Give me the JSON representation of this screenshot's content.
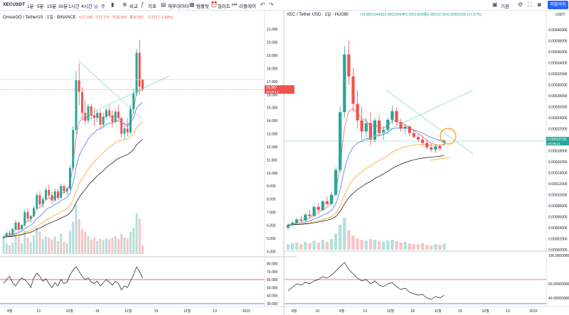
{
  "toolbar": {
    "symbol": "XECUSDT",
    "intervals": [
      "1분",
      "5분",
      "15분",
      "30분",
      "1시간",
      "4시간",
      "날",
      "주"
    ],
    "compare": "비교",
    "indicators": "지표",
    "financials": "재무데이터",
    "templates": "템플릿",
    "alert": "얼러트",
    "replay": "리플레이",
    "layout": "기본",
    "publish": "퍼블리쉬"
  },
  "chart_data": [
    {
      "type": "candlestick",
      "title": "OmiseGO / TetherUS · 1일 · BINANCE",
      "ohlc_legend": {
        "open": "시17.159",
        "high": "고17.170",
        "low": "저16.309",
        "close": "종16.387",
        "change": "−0.272 (−1.59%)"
      },
      "last_price_label": "16.387",
      "countdown_label": "23:09:13",
      "price_axis": [
        "21.000",
        "20.000",
        "19.000",
        "18.000",
        "17.000",
        "16.000",
        "15.000",
        "14.000",
        "13.000",
        "12.000",
        "11.000",
        "10.000",
        "9.000",
        "8.000",
        "7.000",
        "6.000",
        "5.000",
        "4.000"
      ],
      "x_ticks": [
        "9월",
        "13",
        "10월",
        "18",
        "11월",
        "15",
        "12월",
        "13",
        "2022"
      ],
      "osc_axis": [
        "80.000",
        "70.000",
        "60.000",
        "50.000",
        "40.000",
        "30.000"
      ],
      "candles": [
        [
          5.0,
          5.3,
          4.8,
          5.1
        ],
        [
          5.1,
          5.5,
          5.0,
          5.4
        ],
        [
          5.4,
          5.6,
          5.2,
          5.3
        ],
        [
          5.3,
          5.8,
          5.2,
          5.7
        ],
        [
          5.7,
          6.4,
          5.6,
          6.2
        ],
        [
          6.2,
          6.3,
          5.5,
          5.7
        ],
        [
          5.7,
          6.1,
          5.6,
          6.0
        ],
        [
          6.0,
          7.2,
          5.9,
          7.0
        ],
        [
          7.0,
          7.3,
          6.3,
          6.5
        ],
        [
          6.5,
          6.8,
          6.2,
          6.7
        ],
        [
          6.7,
          7.5,
          6.6,
          7.3
        ],
        [
          7.3,
          8.5,
          7.2,
          8.3
        ],
        [
          8.3,
          8.6,
          7.4,
          7.6
        ],
        [
          7.6,
          8.2,
          7.3,
          8.0
        ],
        [
          8.0,
          8.9,
          7.9,
          8.7
        ],
        [
          8.7,
          9.1,
          8.1,
          8.3
        ],
        [
          8.3,
          8.6,
          7.6,
          7.9
        ],
        [
          7.9,
          8.8,
          7.8,
          8.6
        ],
        [
          8.6,
          8.8,
          7.9,
          8.1
        ],
        [
          8.1,
          9.2,
          8.0,
          9.0
        ],
        [
          9.0,
          9.1,
          8.4,
          8.6
        ],
        [
          8.6,
          8.9,
          8.3,
          8.8
        ],
        [
          8.8,
          10.6,
          8.7,
          10.4
        ],
        [
          10.4,
          13.6,
          10.2,
          13.3
        ],
        [
          13.3,
          17.8,
          13.0,
          17.1
        ],
        [
          17.1,
          18.4,
          15.2,
          16.2
        ],
        [
          16.2,
          16.6,
          14.1,
          14.6
        ],
        [
          14.6,
          15.6,
          13.7,
          14.0
        ],
        [
          14.0,
          15.3,
          13.8,
          15.1
        ],
        [
          15.1,
          15.3,
          14.1,
          14.4
        ],
        [
          14.4,
          15.0,
          13.6,
          14.2
        ],
        [
          14.2,
          14.8,
          13.9,
          14.6
        ],
        [
          14.6,
          14.8,
          13.4,
          13.7
        ],
        [
          13.7,
          14.6,
          13.5,
          14.3
        ],
        [
          14.3,
          15.0,
          14.1,
          14.8
        ],
        [
          14.8,
          15.2,
          14.2,
          14.4
        ],
        [
          14.4,
          14.8,
          13.5,
          13.9
        ],
        [
          13.9,
          14.9,
          13.8,
          14.7
        ],
        [
          14.7,
          15.2,
          14.0,
          14.2
        ],
        [
          14.2,
          14.3,
          12.7,
          13.0
        ],
        [
          13.0,
          13.6,
          12.6,
          13.4
        ],
        [
          13.4,
          14.2,
          12.8,
          13.1
        ],
        [
          13.1,
          15.2,
          13.0,
          14.9
        ],
        [
          14.9,
          16.4,
          14.6,
          16.1
        ],
        [
          16.1,
          19.5,
          15.9,
          19.2
        ],
        [
          19.2,
          20.2,
          16.0,
          16.6
        ],
        [
          17.159,
          17.17,
          16.309,
          16.387
        ]
      ],
      "volume": [
        22,
        18,
        15,
        20,
        35,
        30,
        18,
        40,
        28,
        20,
        32,
        45,
        38,
        26,
        30,
        28,
        25,
        30,
        22,
        35,
        20,
        18,
        40,
        55,
        85,
        60,
        42,
        38,
        30,
        25,
        28,
        22,
        26,
        24,
        27,
        25,
        28,
        30,
        26,
        34,
        28,
        26,
        38,
        45,
        70,
        60,
        15
      ],
      "osc_values": [
        55,
        60,
        64,
        56,
        52,
        58,
        62,
        60,
        56,
        50,
        62,
        68,
        64,
        58,
        61,
        55,
        50,
        56,
        52,
        60,
        55,
        57,
        66,
        72,
        76,
        70,
        64,
        60,
        62,
        57,
        55,
        58,
        52,
        56,
        60,
        57,
        53,
        58,
        55,
        47,
        52,
        50,
        58,
        66,
        76,
        70,
        62
      ],
      "osc_line_level": 60
    },
    {
      "type": "candlestick",
      "title": "XEC / Tether USD · 1일 · HUOBI",
      "ohlc_legend": {
        "open": "시0.00019443",
        "high": "고0.00020064",
        "low": "저0.00019006",
        "close": "종0.00019736",
        "change": "+0.00000305 (+1.57%)"
      },
      "last_price_label": "0.00019736",
      "countdown_label": "23:09:12",
      "price_axis": [
        "0.00040000",
        "0.00038000",
        "0.00036000",
        "0.00034000",
        "0.00032000",
        "0.00030000",
        "0.00028000",
        "0.00026000",
        "0.00024000",
        "0.00022000",
        "0.00020000",
        "0.00018000",
        "0.00016000",
        "0.00014000",
        "0.00012000",
        "0.00010000",
        "0.00008000",
        "0.00006000",
        "0.00004000",
        "0.00002000",
        "0.00000000"
      ],
      "axis_currency": "USDT",
      "x_ticks": [
        "8월",
        "16",
        "9월",
        "13",
        "10월",
        "18",
        "11월",
        "15",
        "12월",
        "13",
        "2022"
      ],
      "osc_axis": [
        "100.00000000",
        "60.00000000",
        "40.00000000"
      ],
      "candles": [
        [
          4e-05,
          4.8e-05,
          3.6e-05,
          4.5e-05
        ],
        [
          4.5e-05,
          5.2e-05,
          4.2e-05,
          4.9e-05
        ],
        [
          4.9e-05,
          5.8e-05,
          4.6e-05,
          5.5e-05
        ],
        [
          5.5e-05,
          6.2e-05,
          5e-05,
          5.3e-05
        ],
        [
          5.3e-05,
          6.6e-05,
          5.2e-05,
          6.4e-05
        ],
        [
          6.4e-05,
          7.2e-05,
          5.8e-05,
          6.1e-05
        ],
        [
          6.1e-05,
          8e-05,
          6e-05,
          7.8e-05
        ],
        [
          7.8e-05,
          8.5e-05,
          6.8e-05,
          7.2e-05
        ],
        [
          7.2e-05,
          9e-05,
          7e-05,
          8.8e-05
        ],
        [
          8.8e-05,
          9.6e-05,
          8e-05,
          8.3e-05
        ],
        [
          8.3e-05,
          0.000105,
          8.2e-05,
          0.0001
        ],
        [
          0.0001,
          0.00015,
          9.8e-05,
          0.000145
        ],
        [
          0.000145,
          0.00026,
          0.00014,
          0.00025
        ],
        [
          0.00025,
          0.00037,
          0.00024,
          0.000355
        ],
        [
          0.000355,
          0.00038,
          0.0003,
          0.000315
        ],
        [
          0.000315,
          0.00033,
          0.00025,
          0.000265
        ],
        [
          0.000265,
          0.00029,
          0.00022,
          0.000235
        ],
        [
          0.000235,
          0.00026,
          0.0002,
          0.000215
        ],
        [
          0.000215,
          0.00024,
          0.000205,
          0.00023
        ],
        [
          0.00023,
          0.00025,
          0.00019,
          0.0002
        ],
        [
          0.0002,
          0.00024,
          0.000195,
          0.000235
        ],
        [
          0.000235,
          0.000245,
          0.000205,
          0.000212
        ],
        [
          0.000212,
          0.000225,
          0.0002,
          0.000218
        ],
        [
          0.000218,
          0.00024,
          0.00021,
          0.000236
        ],
        [
          0.000236,
          0.000262,
          0.000228,
          0.000252
        ],
        [
          0.000252,
          0.000258,
          0.000226,
          0.000232
        ],
        [
          0.000232,
          0.000238,
          0.000214,
          0.00022
        ],
        [
          0.00022,
          0.000228,
          0.00021,
          0.000224
        ],
        [
          0.000224,
          0.000226,
          0.000206,
          0.000212
        ],
        [
          0.000212,
          0.000218,
          0.000202,
          0.000205
        ],
        [
          0.000205,
          0.00021,
          0.000196,
          0.0002
        ],
        [
          0.0002,
          0.000208,
          0.00019,
          0.000194
        ],
        [
          0.000194,
          0.0002,
          0.000182,
          0.000186
        ],
        [
          0.000186,
          0.000192,
          0.000178,
          0.000182
        ],
        [
          0.000182,
          0.00019,
          0.000176,
          0.000188
        ],
        [
          0.000188,
          0.000192,
          0.00018,
          0.000184
        ],
        [
          0.00019443,
          0.00020064,
          0.00019006,
          0.00019736
        ]
      ],
      "volume": [
        15,
        18,
        20,
        16,
        22,
        18,
        25,
        20,
        28,
        22,
        30,
        45,
        70,
        90,
        55,
        40,
        32,
        28,
        26,
        30,
        28,
        24,
        22,
        26,
        28,
        24,
        20,
        22,
        18,
        16,
        15,
        18,
        14,
        12,
        16,
        14,
        18
      ],
      "osc_values": [
        50,
        55,
        60,
        58,
        62,
        60,
        64,
        66,
        70,
        68,
        72,
        78,
        84,
        90,
        80,
        74,
        68,
        64,
        66,
        60,
        64,
        58,
        56,
        60,
        62,
        56,
        52,
        54,
        48,
        46,
        44,
        45,
        40,
        38,
        42,
        40,
        44
      ],
      "osc_line_level": 66
    }
  ]
}
